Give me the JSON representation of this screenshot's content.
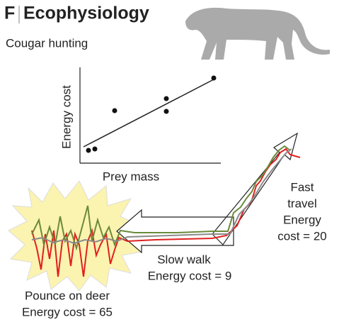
{
  "panel_label": "F",
  "title": "Ecophysiology",
  "subtitle": "Cougar hunting",
  "plot": {
    "y_label": "Energy cost",
    "x_label": "Prey mass"
  },
  "stages": [
    {
      "lines": [
        "Fast",
        "travel",
        "Energy",
        "cost = 20"
      ]
    },
    {
      "lines": [
        "Slow walk",
        "Energy cost = 9"
      ]
    },
    {
      "lines": [
        "Pounce on deer",
        "Energy cost = 65"
      ]
    }
  ]
}
